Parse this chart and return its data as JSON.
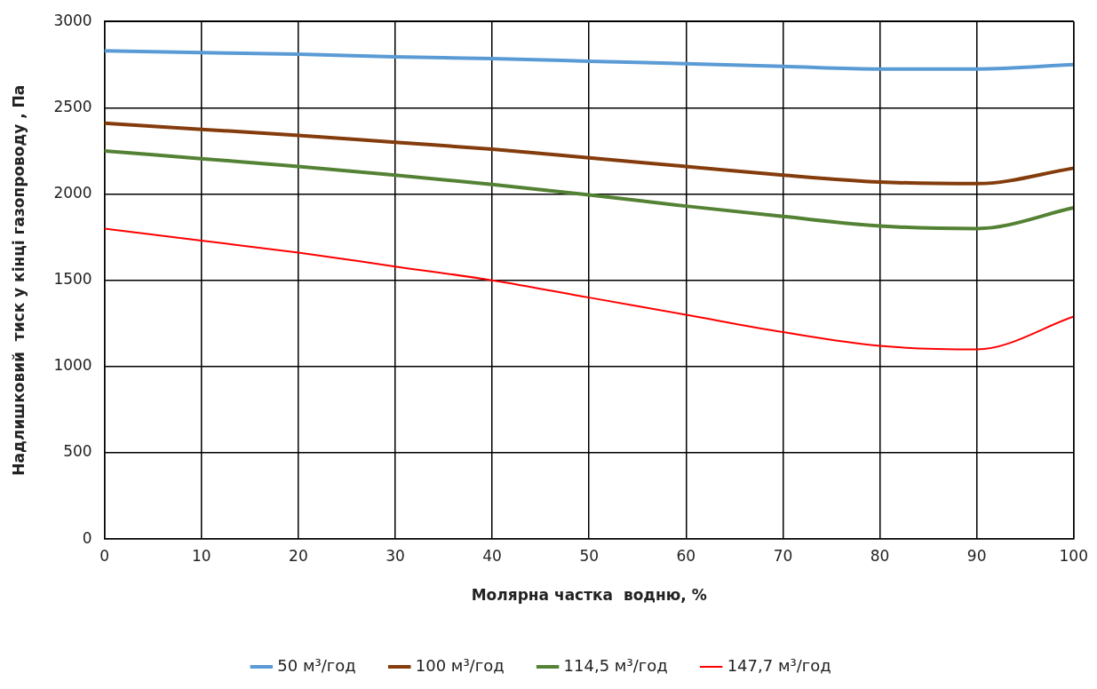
{
  "chart_data": {
    "type": "line",
    "xlabel": "Молярна частка  водню, %",
    "ylabel": "Надлишковий  тиск у кінці газопроводу , Па",
    "x": [
      0,
      10,
      20,
      30,
      40,
      50,
      60,
      70,
      80,
      90,
      100
    ],
    "xlim": [
      0,
      100
    ],
    "xticks": [
      0,
      10,
      20,
      30,
      40,
      50,
      60,
      70,
      80,
      90,
      100
    ],
    "ylim": [
      0,
      3000
    ],
    "yticks": [
      0,
      500,
      1000,
      1500,
      2000,
      2500,
      3000
    ],
    "grid": true,
    "legend": "bottom",
    "marker": "none",
    "line_style": "solid",
    "series": [
      {
        "name": "50 м³/год",
        "color": "#5b9bd5",
        "values": [
          2830,
          2820,
          2810,
          2795,
          2785,
          2770,
          2755,
          2740,
          2725,
          2725,
          2750
        ]
      },
      {
        "name": "100 м³/год",
        "color": "#843c0c",
        "values": [
          2410,
          2375,
          2340,
          2300,
          2260,
          2210,
          2160,
          2110,
          2070,
          2060,
          2150
        ]
      },
      {
        "name": "114,5 м³/год",
        "color": "#548235",
        "values": [
          2250,
          2205,
          2160,
          2110,
          2055,
          1995,
          1930,
          1870,
          1815,
          1800,
          1920
        ]
      },
      {
        "name": "147,7 м³/год",
        "color": "#ff0000",
        "values": [
          1800,
          1730,
          1660,
          1580,
          1500,
          1400,
          1300,
          1200,
          1120,
          1100,
          1290
        ]
      }
    ]
  }
}
